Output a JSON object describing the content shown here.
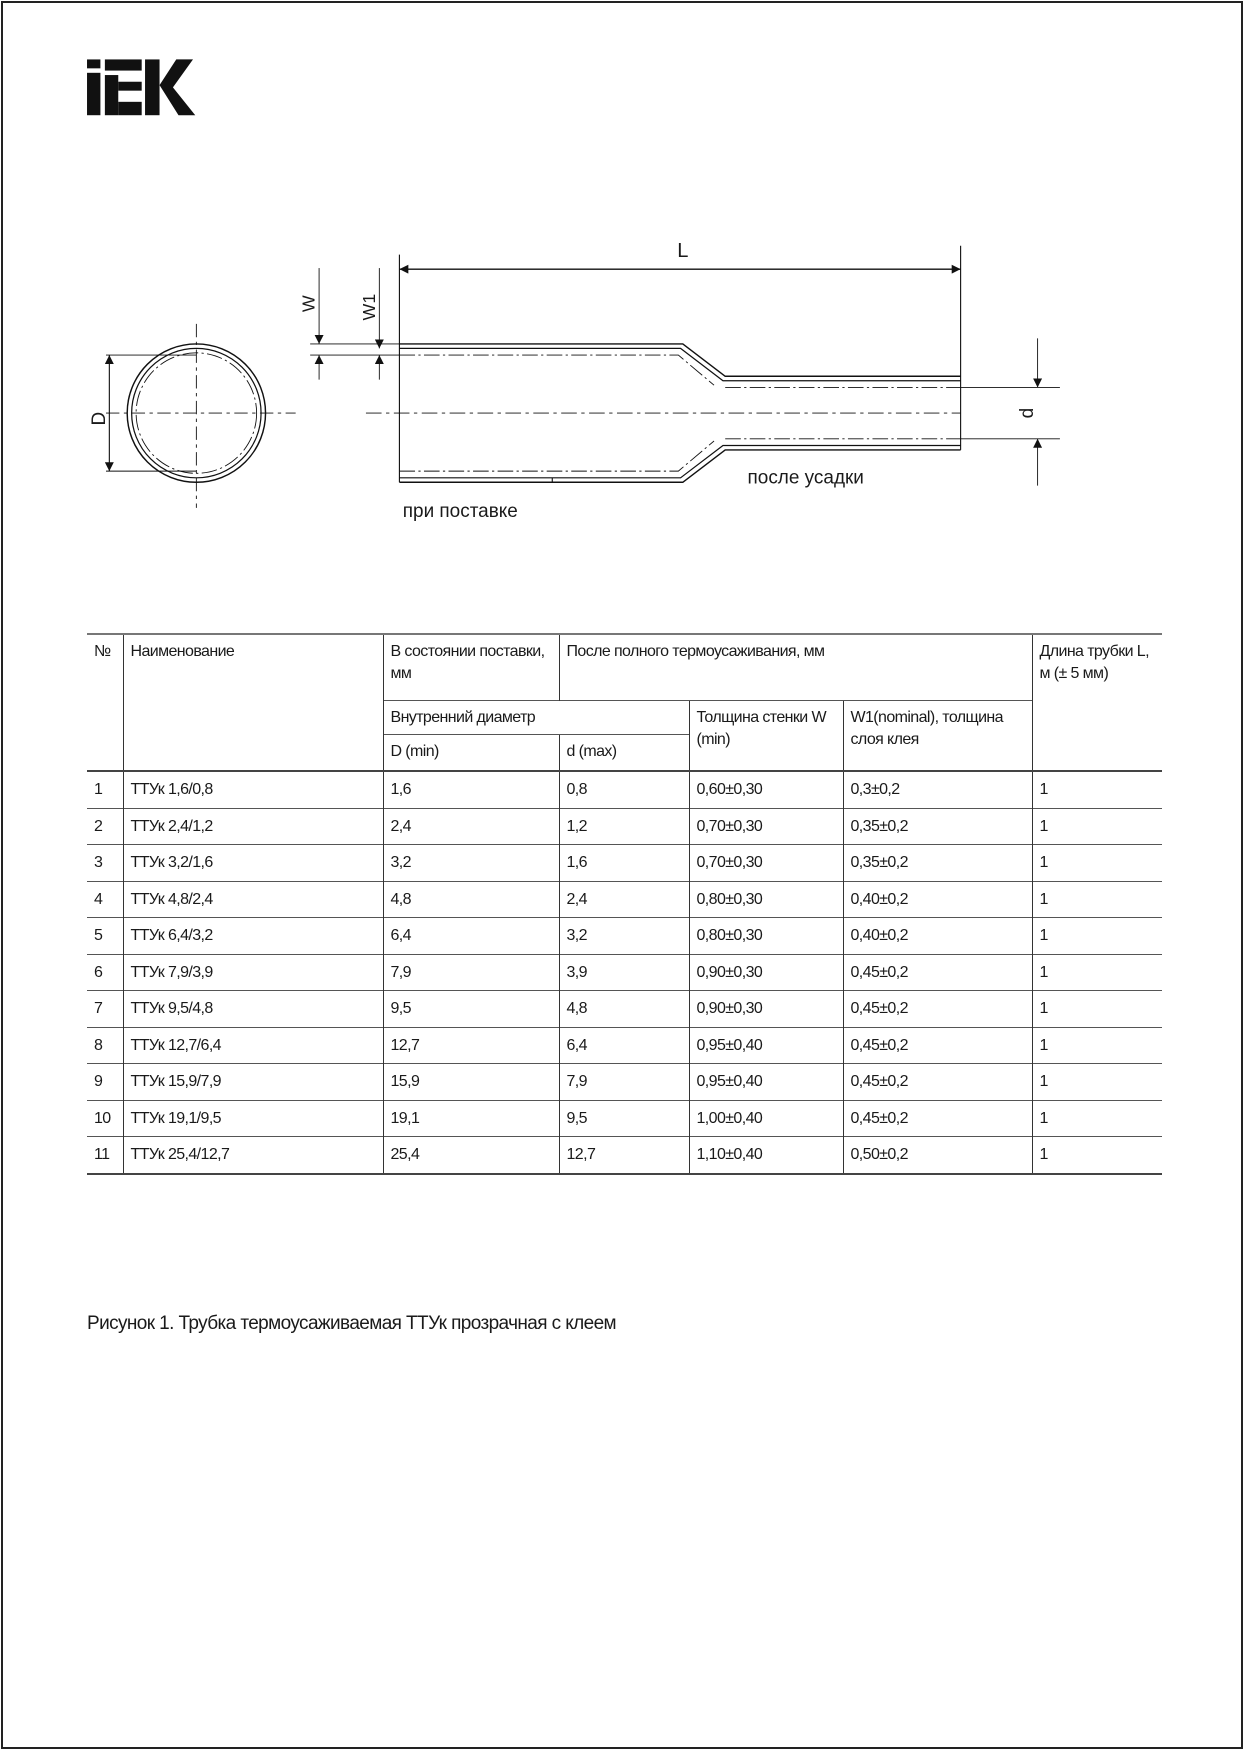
{
  "logo": {
    "text": "IEK"
  },
  "diagram": {
    "label_L": "L",
    "label_W": "W",
    "label_W1": "W1",
    "label_D": "D",
    "label_d": "d",
    "label_after_shrink": "после усадки",
    "label_as_supplied": "при поставке"
  },
  "table": {
    "headers": {
      "no": "№",
      "name": "Наименование",
      "supplied": "В состоянии поставки, мм",
      "after_shrink": "После полного термоусаживания, мм",
      "length": "Длина трубки L, м (± 5 мм)",
      "inner_diameter": "Внутренний диаметр",
      "wall": "Толщина стенки W (min)",
      "glue": "W1(nominal), толщина слоя клея",
      "D_min": "D (min)",
      "d_max": "d (max)"
    },
    "rows": [
      {
        "no": "1",
        "name": "ТТУк 1,6/0,8",
        "D": "1,6",
        "d": "0,8",
        "W": "0,60±0,30",
        "W1": "0,3±0,2",
        "L": "1"
      },
      {
        "no": "2",
        "name": "ТТУк 2,4/1,2",
        "D": "2,4",
        "d": "1,2",
        "W": "0,70±0,30",
        "W1": "0,35±0,2",
        "L": "1"
      },
      {
        "no": "3",
        "name": "ТТУк 3,2/1,6",
        "D": "3,2",
        "d": "1,6",
        "W": "0,70±0,30",
        "W1": "0,35±0,2",
        "L": "1"
      },
      {
        "no": "4",
        "name": "ТТУк 4,8/2,4",
        "D": "4,8",
        "d": "2,4",
        "W": "0,80±0,30",
        "W1": "0,40±0,2",
        "L": "1"
      },
      {
        "no": "5",
        "name": "ТТУк 6,4/3,2",
        "D": "6,4",
        "d": "3,2",
        "W": "0,80±0,30",
        "W1": "0,40±0,2",
        "L": "1"
      },
      {
        "no": "6",
        "name": "ТТУк 7,9/3,9",
        "D": "7,9",
        "d": "3,9",
        "W": "0,90±0,30",
        "W1": "0,45±0,2",
        "L": "1"
      },
      {
        "no": "7",
        "name": "ТТУк 9,5/4,8",
        "D": "9,5",
        "d": "4,8",
        "W": "0,90±0,30",
        "W1": "0,45±0,2",
        "L": "1"
      },
      {
        "no": "8",
        "name": "ТТУк 12,7/6,4",
        "D": "12,7",
        "d": "6,4",
        "W": "0,95±0,40",
        "W1": "0,45±0,2",
        "L": "1"
      },
      {
        "no": "9",
        "name": "ТТУк 15,9/7,9",
        "D": "15,9",
        "d": "7,9",
        "W": "0,95±0,40",
        "W1": "0,45±0,2",
        "L": "1"
      },
      {
        "no": "10",
        "name": "ТТУк 19,1/9,5",
        "D": "19,1",
        "d": "9,5",
        "W": "1,00±0,40",
        "W1": "0,45±0,2",
        "L": "1"
      },
      {
        "no": "11",
        "name": "ТТУк 25,4/12,7",
        "D": "25,4",
        "d": "12,7",
        "W": "1,10±0,40",
        "W1": "0,50±0,2",
        "L": "1"
      }
    ]
  },
  "caption": "Рисунок 1. Трубка термоусаживаемая ТТУк прозрачная с клеем"
}
